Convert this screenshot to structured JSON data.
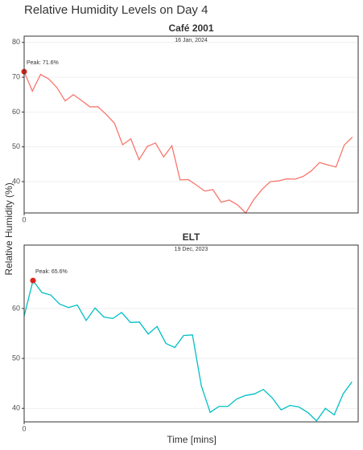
{
  "title": "Relative Humidity Levels on Day 4",
  "y_label": "Relative Humidity (%)",
  "x_label": "Time [mins]",
  "chart_data": [
    {
      "type": "line",
      "title": "Café 2001",
      "subtitle": "16 Jan, 2024",
      "annotation": "Peak: 71.6%",
      "x": [
        0,
        1,
        2,
        3,
        4,
        5,
        6,
        7,
        8,
        9,
        10,
        11,
        12,
        13,
        14,
        15,
        16,
        17,
        18,
        19,
        20,
        21,
        22,
        23,
        24,
        25,
        26,
        27,
        28,
        29,
        30,
        31,
        32,
        33,
        34,
        35,
        36,
        37,
        38,
        39,
        40
      ],
      "series": [
        {
          "name": "Café 2001",
          "color": "#f8766d",
          "values": [
            71.6,
            66,
            70.8,
            69.5,
            67,
            63.2,
            65,
            63.3,
            61.5,
            61.5,
            59.3,
            56.8,
            50.6,
            52.3,
            46.3,
            50.1,
            51.1,
            47.1,
            50.3,
            40.5,
            40.6,
            39,
            37.3,
            37.7,
            34.1,
            34.7,
            33.3,
            31,
            34.9,
            37.8,
            40,
            40.2,
            40.8,
            40.7,
            41.5,
            43.1,
            45.5,
            44.8,
            44.2,
            50.5,
            52.8
          ]
        }
      ],
      "peak_color": "#e0231b",
      "xlim": [
        0,
        40.7
      ],
      "xticks": [
        0
      ],
      "ylim": [
        31,
        81.8
      ],
      "yticks": [
        40,
        50,
        60,
        70,
        80
      ],
      "grid": true
    },
    {
      "type": "line",
      "title": "ELT",
      "subtitle": "19 Dec, 2023",
      "annotation": "Peak: 65.6%",
      "x": [
        0,
        1,
        2,
        3,
        4,
        5,
        6,
        7,
        8,
        9,
        10,
        11,
        12,
        13,
        14,
        15,
        16,
        17,
        18,
        19,
        20,
        21,
        22,
        23,
        24,
        25,
        26,
        27,
        28,
        29,
        30,
        31,
        32,
        33,
        34,
        35,
        36,
        37
      ],
      "series": [
        {
          "name": "ELT",
          "color": "#00bfc4",
          "values": [
            58.5,
            65.6,
            63.2,
            62.7,
            60.9,
            60.2,
            60.7,
            57.6,
            60.1,
            58.3,
            58,
            59.2,
            57.2,
            57.3,
            54.9,
            56.4,
            53,
            52.2,
            54.6,
            54.7,
            44.5,
            39.2,
            40.4,
            40.4,
            41.9,
            42.6,
            42.9,
            43.8,
            42.1,
            39.7,
            40.6,
            40.3,
            39.2,
            37.5,
            40,
            38.7,
            42.9,
            45.3
          ]
        }
      ],
      "peak_color": "#e0231b",
      "xlim": [
        0,
        37.7
      ],
      "xticks": [
        0
      ],
      "ylim": [
        37.3,
        72.7
      ],
      "yticks": [
        40,
        50,
        60
      ],
      "grid": true
    }
  ]
}
